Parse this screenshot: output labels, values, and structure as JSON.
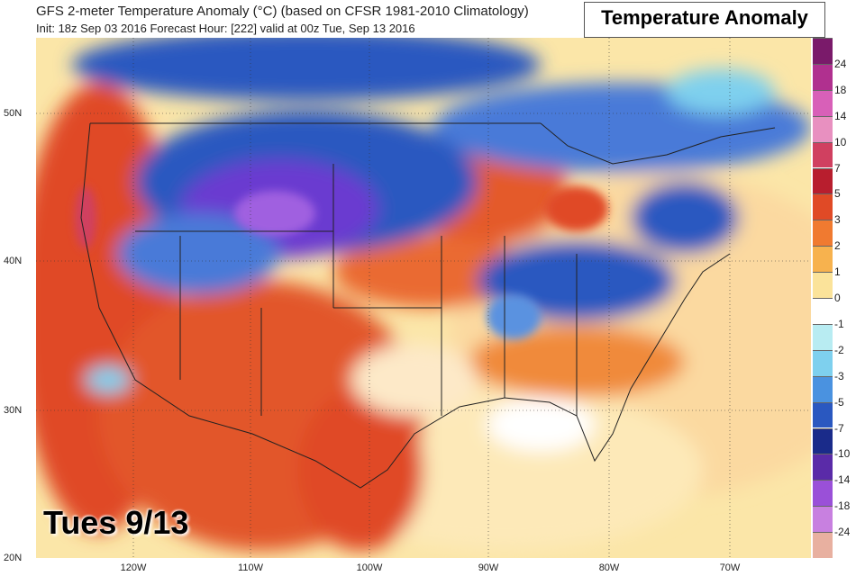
{
  "header": {
    "title": "GFS 2-meter Temperature Anomaly (°C) (based on CFSR 1981-2010 Climatology)",
    "subtitle": "Init: 18z Sep 03 2016   Forecast Hour: [222]   valid at 00z Tue, Sep 13 2016"
  },
  "badge": {
    "label": "Temperature Anomaly"
  },
  "overlay": {
    "date_label": "Tues 9/13"
  },
  "axes": {
    "lat_labels": [
      "50N",
      "40N",
      "30N",
      "20N"
    ],
    "lon_labels": [
      "120W",
      "110W",
      "100W",
      "90W",
      "80W",
      "70W"
    ]
  },
  "colorbar": {
    "labels": [
      "24",
      "18",
      "14",
      "10",
      "7",
      "5",
      "3",
      "2",
      "1",
      "0",
      "-1",
      "-2",
      "-3",
      "-5",
      "-7",
      "-10",
      "-14",
      "-18",
      "-24"
    ],
    "colors": [
      "#7a1a6a",
      "#b0308f",
      "#d860b8",
      "#e890c0",
      "#d04060",
      "#b81e2e",
      "#e04a26",
      "#f07a30",
      "#f7b24e",
      "#fbe39a",
      "#ffffff",
      "#b8ecf2",
      "#7ed0ee",
      "#4a92e0",
      "#2a58c0",
      "#1a2b8a",
      "#5a2ba8",
      "#9a50d8",
      "#c880e0",
      "#e8b0a0"
    ]
  },
  "legend_colors": {
    "warm": "#e04a26",
    "cold": "#2a58c0",
    "anomaly_purple": "#7a3ad0"
  }
}
